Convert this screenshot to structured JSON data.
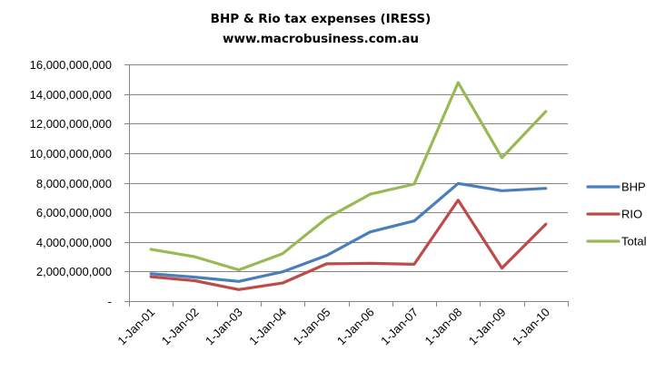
{
  "chart_data": {
    "type": "line",
    "title": "BHP & Rio tax expenses (IRESS)",
    "subtitle": "www.macrobusiness.com.au",
    "xlabel": "",
    "ylabel": "",
    "ylim": [
      0,
      16000000000
    ],
    "grid": "horizontal",
    "legend_position": "right",
    "categories": [
      "1-Jan-01",
      "1-Jan-02",
      "1-Jan-03",
      "1-Jan-04",
      "1-Jan-05",
      "1-Jan-06",
      "1-Jan-07",
      "1-Jan-08",
      "1-Jan-09",
      "1-Jan-10"
    ],
    "y_tick_labels": [
      "-",
      "2,000,000,000",
      "4,000,000,000",
      "6,000,000,000",
      "8,000,000,000",
      "10,000,000,000",
      "12,000,000,000",
      "14,000,000,000",
      "16,000,000,000"
    ],
    "y_tick_values": [
      0,
      2000000000,
      4000000000,
      6000000000,
      8000000000,
      10000000000,
      12000000000,
      14000000000,
      16000000000
    ],
    "series": [
      {
        "name": "BHP",
        "color": "#4a7ebb",
        "values": [
          1850000000,
          1620000000,
          1330000000,
          1980000000,
          3080000000,
          4680000000,
          5420000000,
          7950000000,
          7460000000,
          7620000000
        ]
      },
      {
        "name": "RIO",
        "color": "#be4b48",
        "values": [
          1650000000,
          1380000000,
          780000000,
          1220000000,
          2520000000,
          2550000000,
          2490000000,
          6820000000,
          2230000000,
          5200000000
        ]
      },
      {
        "name": "Total",
        "color": "#98b954",
        "values": [
          3500000000,
          3000000000,
          2110000000,
          3200000000,
          5600000000,
          7230000000,
          7910000000,
          14770000000,
          9690000000,
          12820000000
        ]
      }
    ]
  }
}
